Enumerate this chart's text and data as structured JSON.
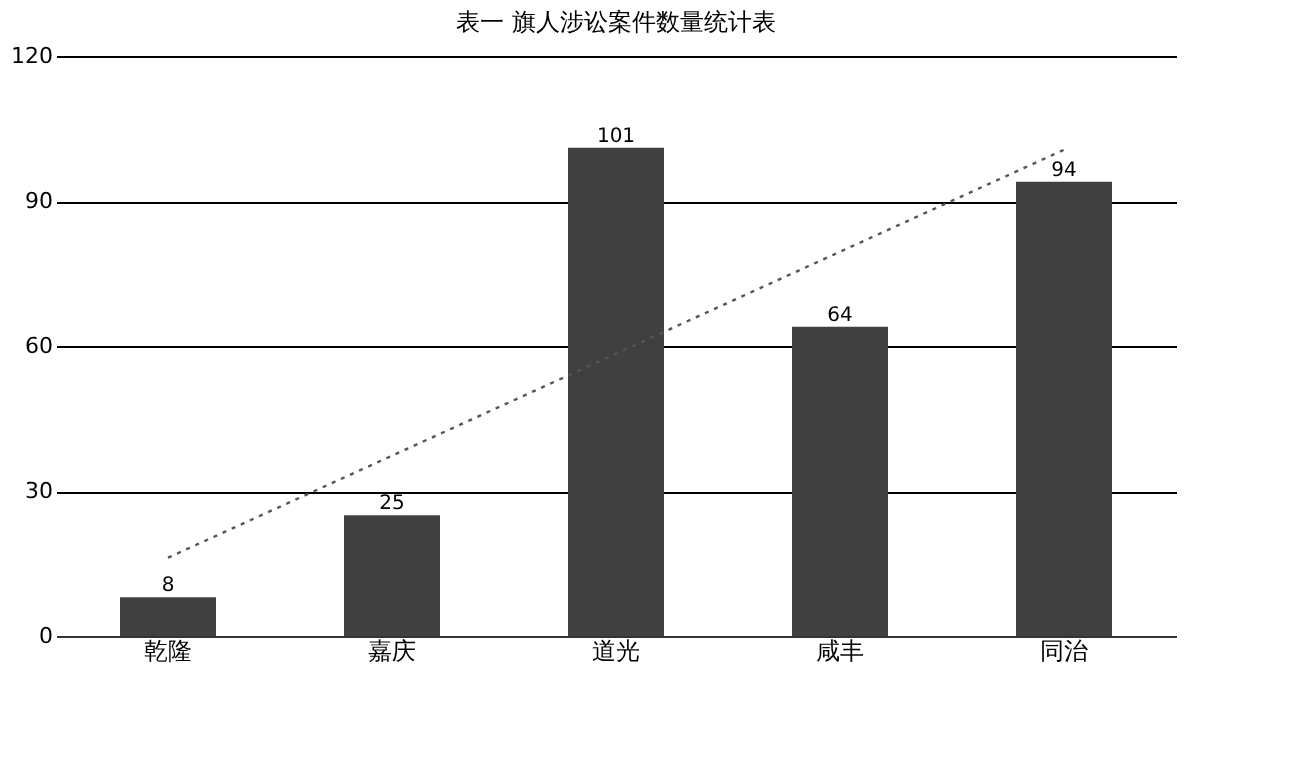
{
  "chart_data": {
    "type": "bar",
    "title": "表一 旗人涉讼案件数量统计表",
    "categories": [
      "乾隆",
      "嘉庆",
      "道光",
      "咸丰",
      "同治"
    ],
    "series": [
      {
        "color": "#404040",
        "values": [
          8,
          25,
          101,
          64,
          94
        ],
        "value_labels": [
          "8",
          "25",
          "101",
          "64",
          "94"
        ]
      },
      {
        "type": "line",
        "color": "#555555",
        "line_style": "dotted",
        "x": [
          "乾隆",
          "同治"
        ],
        "values": [
          16.2,
          100.6
        ]
      }
    ],
    "ylim": [
      0,
      120
    ],
    "yticks": [
      0,
      30,
      60,
      90,
      120
    ],
    "grid": "y"
  }
}
